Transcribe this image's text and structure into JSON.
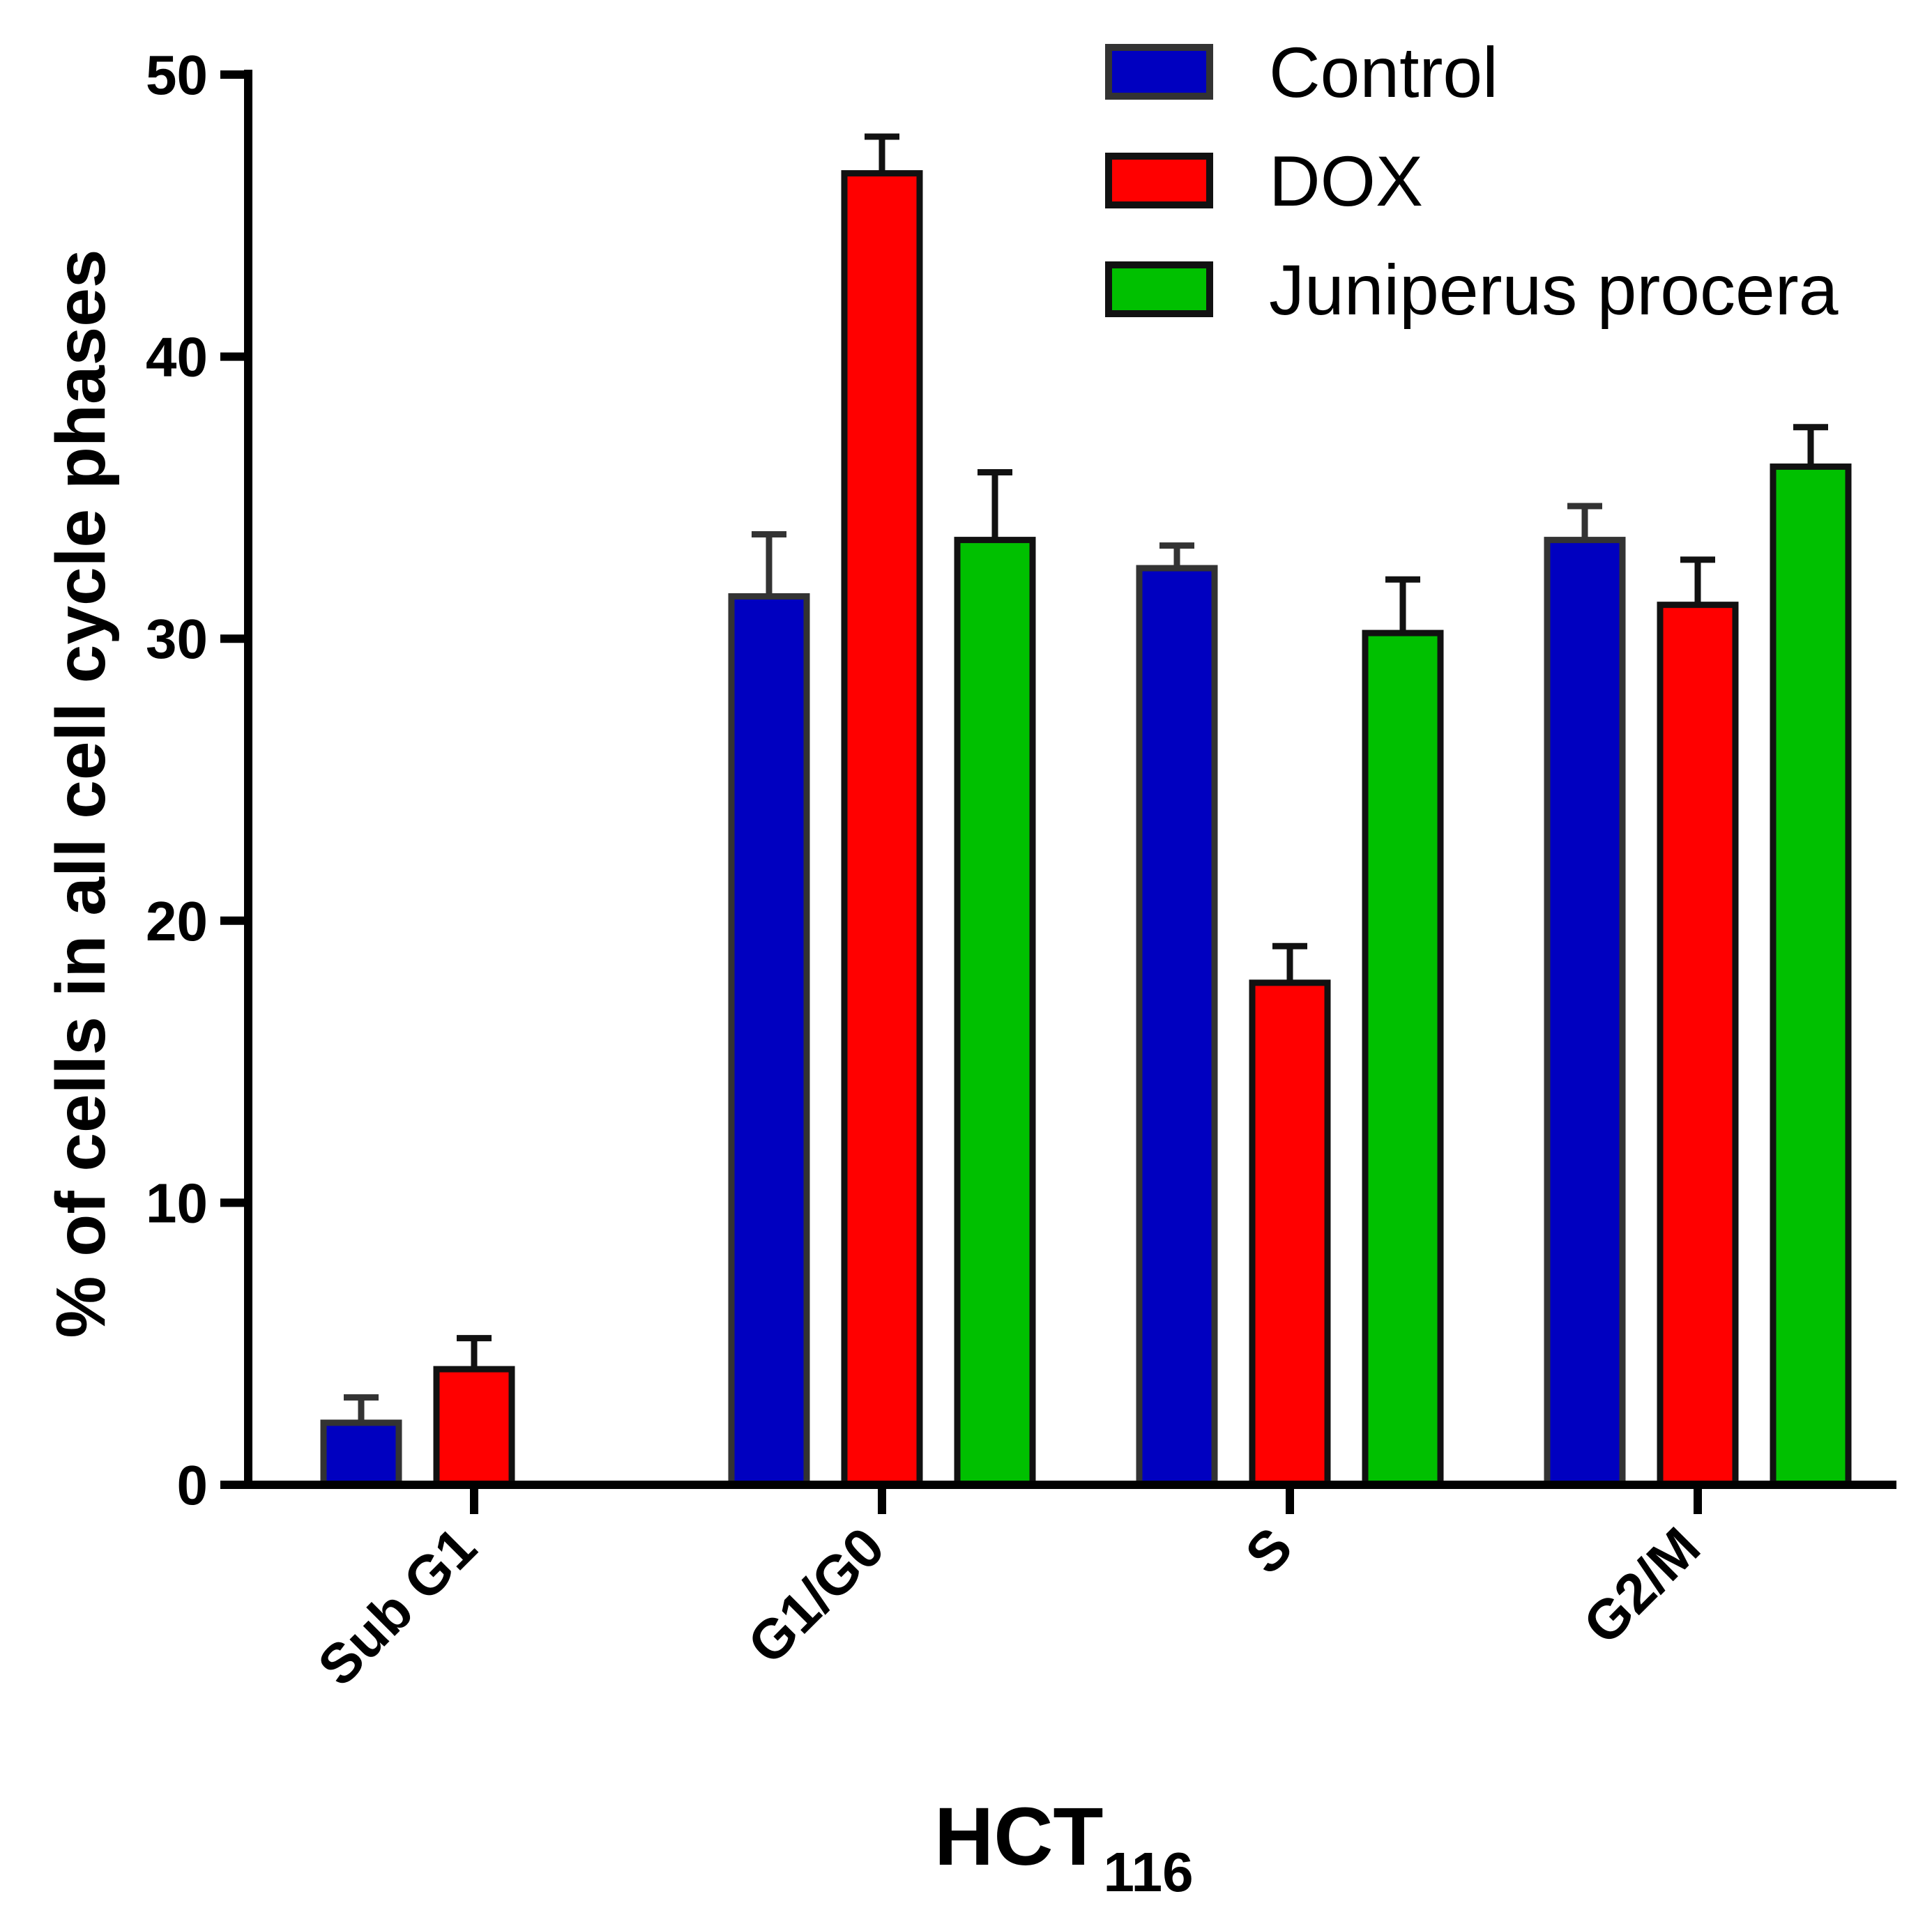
{
  "chart_data": {
    "type": "bar",
    "title": "",
    "xlabel": "HCT",
    "xlabel_subscript": "116",
    "ylabel": "% of cells in all cell cycle phases",
    "ylim": [
      0,
      50
    ],
    "yticks": [
      0,
      10,
      20,
      30,
      40,
      50
    ],
    "ytick_labels": [
      "0",
      "10",
      "20",
      "30",
      "40",
      "50"
    ],
    "grid": false,
    "legend_position": "top-right",
    "categories": [
      "Sub G1",
      "G1/G0",
      "S",
      "G2/M"
    ],
    "series": [
      {
        "name": "Control",
        "color": "#0000c0",
        "edge": "#333333",
        "values": [
          2.2,
          31.5,
          32.5,
          33.5
        ],
        "errors": [
          0.9,
          2.2,
          0.8,
          1.2
        ]
      },
      {
        "name": "DOX",
        "color": "#ff0000",
        "edge": "#111111",
        "values": [
          4.1,
          46.5,
          17.8,
          31.2
        ],
        "errors": [
          1.1,
          1.3,
          1.3,
          1.6
        ]
      },
      {
        "name": "Juniperus procera",
        "color": "#00c000",
        "edge": "#111111",
        "values": [
          null,
          33.5,
          30.2,
          36.1
        ],
        "errors": [
          null,
          2.4,
          1.9,
          1.4
        ]
      }
    ]
  }
}
